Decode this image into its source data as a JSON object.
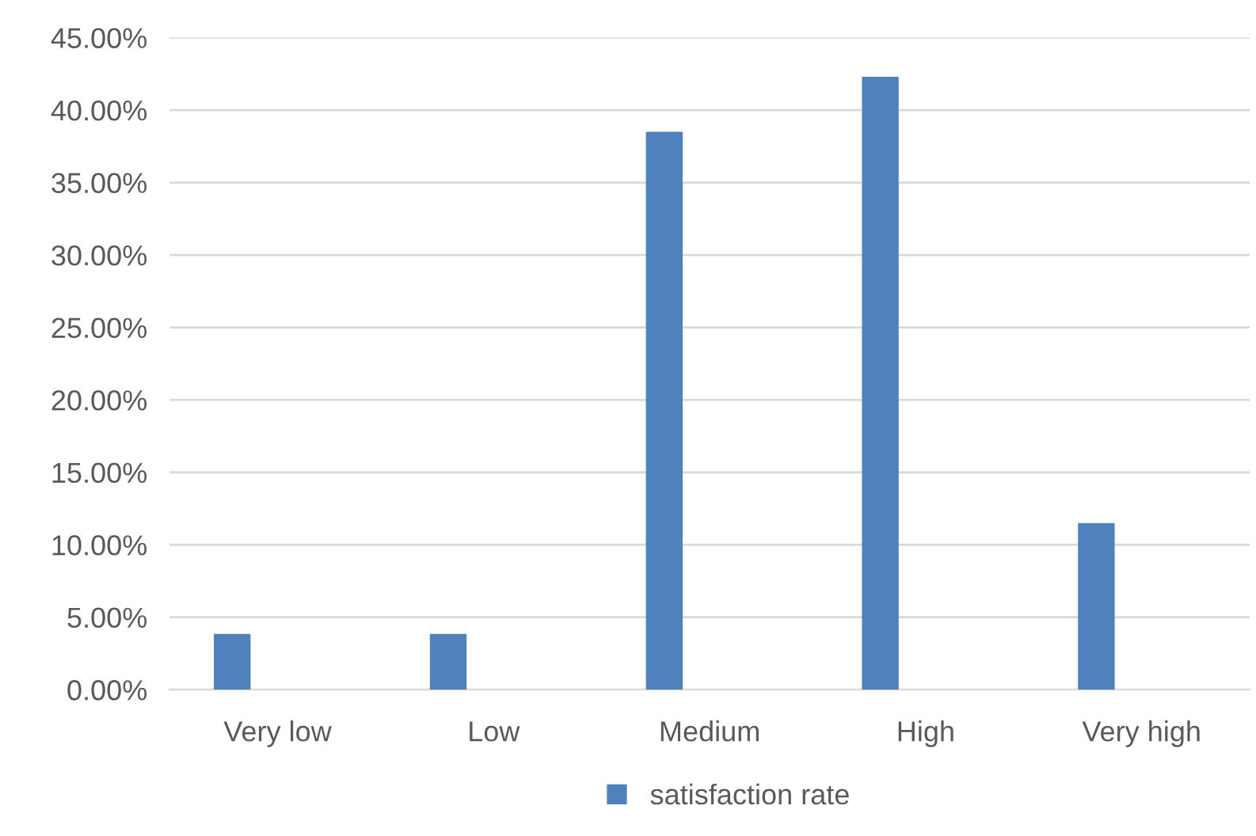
{
  "chart_data": {
    "type": "bar",
    "categories": [
      "Very low",
      "Low",
      "Medium",
      "High",
      "Very high"
    ],
    "series": [
      {
        "name": "satisfaction rate",
        "color": "#4f81bd",
        "values": [
          3.85,
          3.85,
          38.5,
          42.3,
          11.5
        ]
      }
    ],
    "ylim": [
      0,
      45
    ],
    "yticks": [
      {
        "value": 0,
        "label": "0.00%"
      },
      {
        "value": 5,
        "label": "5.00%"
      },
      {
        "value": 10,
        "label": "10.00%"
      },
      {
        "value": 15,
        "label": "15.00%"
      },
      {
        "value": 20,
        "label": "20.00%"
      },
      {
        "value": 25,
        "label": "25.00%"
      },
      {
        "value": 30,
        "label": "30.00%"
      },
      {
        "value": 35,
        "label": "35.00%"
      },
      {
        "value": 40,
        "label": "40.00%"
      },
      {
        "value": 45,
        "label": "45.00%"
      }
    ],
    "grid": "y",
    "legend": "bottom"
  }
}
